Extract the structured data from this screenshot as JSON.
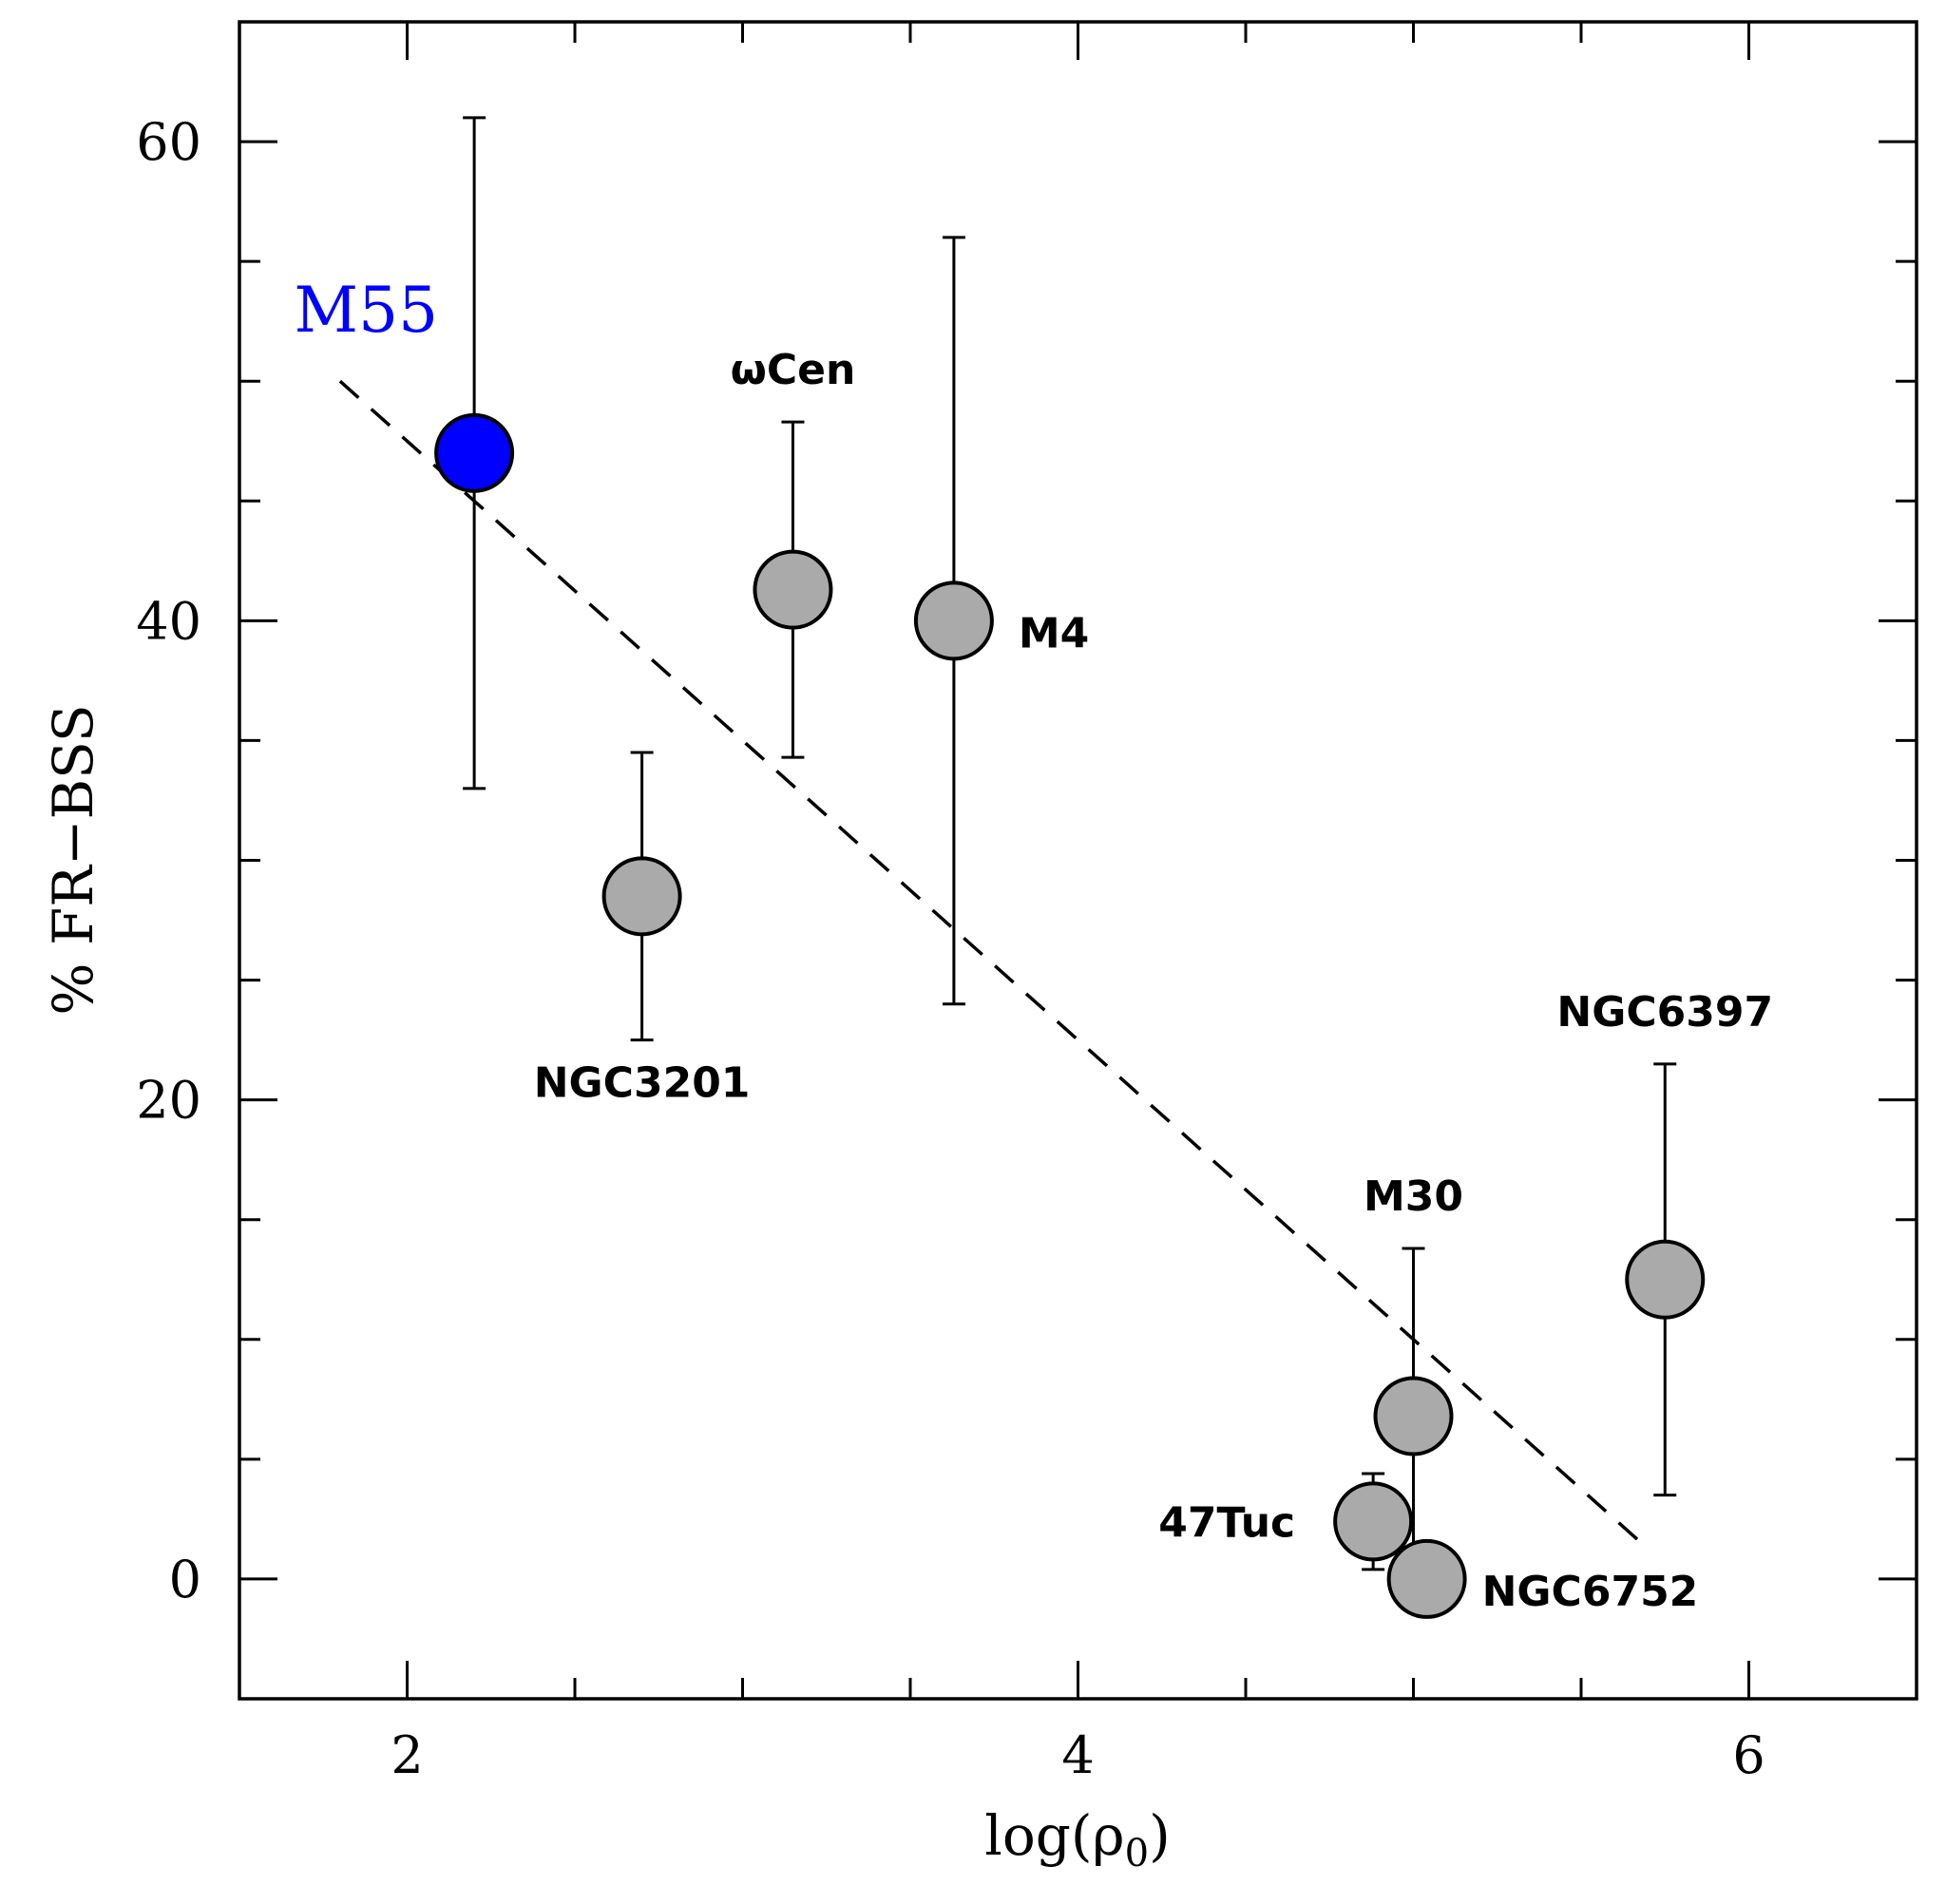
{
  "chart_data": {
    "type": "scatter",
    "xlabel": "log(ρ0)",
    "ylabel": "% FR−BSS",
    "xlim": [
      1.5,
      6.5
    ],
    "ylim": [
      -5,
      65
    ],
    "xticks_major": [
      2,
      4,
      6
    ],
    "xticks_minor_step": 0.5,
    "yticks_major": [
      0,
      20,
      40,
      60
    ],
    "yticks_minor_step": 5,
    "grid": false,
    "points": [
      {
        "name": "M55",
        "label": "M55",
        "x": 2.2,
        "y": 47,
        "err_low": 14,
        "err_high": 14,
        "color": "#0000ff",
        "label_pos": "upper-left"
      },
      {
        "name": "NGC3201",
        "label": "NGC3201",
        "x": 2.7,
        "y": 28.5,
        "err_low": 6,
        "err_high": 6,
        "color": "#aaaaaa",
        "label_pos": "below"
      },
      {
        "name": "ωCen",
        "label": "ωCen",
        "x": 3.15,
        "y": 41.3,
        "err_low": 7,
        "err_high": 7,
        "color": "#aaaaaa",
        "label_pos": "above"
      },
      {
        "name": "M4",
        "label": "M4",
        "x": 3.63,
        "y": 40,
        "err_low": 16,
        "err_high": 16,
        "color": "#aaaaaa",
        "label_pos": "right"
      },
      {
        "name": "47Tuc",
        "label": "47Tuc",
        "x": 4.88,
        "y": 2.4,
        "err_low": 2,
        "err_high": 2,
        "color": "#aaaaaa",
        "label_pos": "left"
      },
      {
        "name": "M30",
        "label": "M30",
        "x": 5.0,
        "y": 6.8,
        "err_low": 7,
        "err_high": 7,
        "color": "#aaaaaa",
        "label_pos": "above"
      },
      {
        "name": "NGC6752",
        "label": "NGC6752",
        "x": 5.04,
        "y": 0,
        "err_low": 0,
        "err_high": 0,
        "color": "#aaaaaa",
        "label_pos": "right"
      },
      {
        "name": "NGC6397",
        "label": "NGC6397",
        "x": 5.75,
        "y": 12.5,
        "err_low": 9,
        "err_high": 9,
        "color": "#aaaaaa",
        "label_pos": "above"
      }
    ],
    "fit_line": {
      "style": "dashed",
      "x": [
        1.8,
        5.68
      ],
      "y": [
        50,
        1.5
      ]
    }
  }
}
